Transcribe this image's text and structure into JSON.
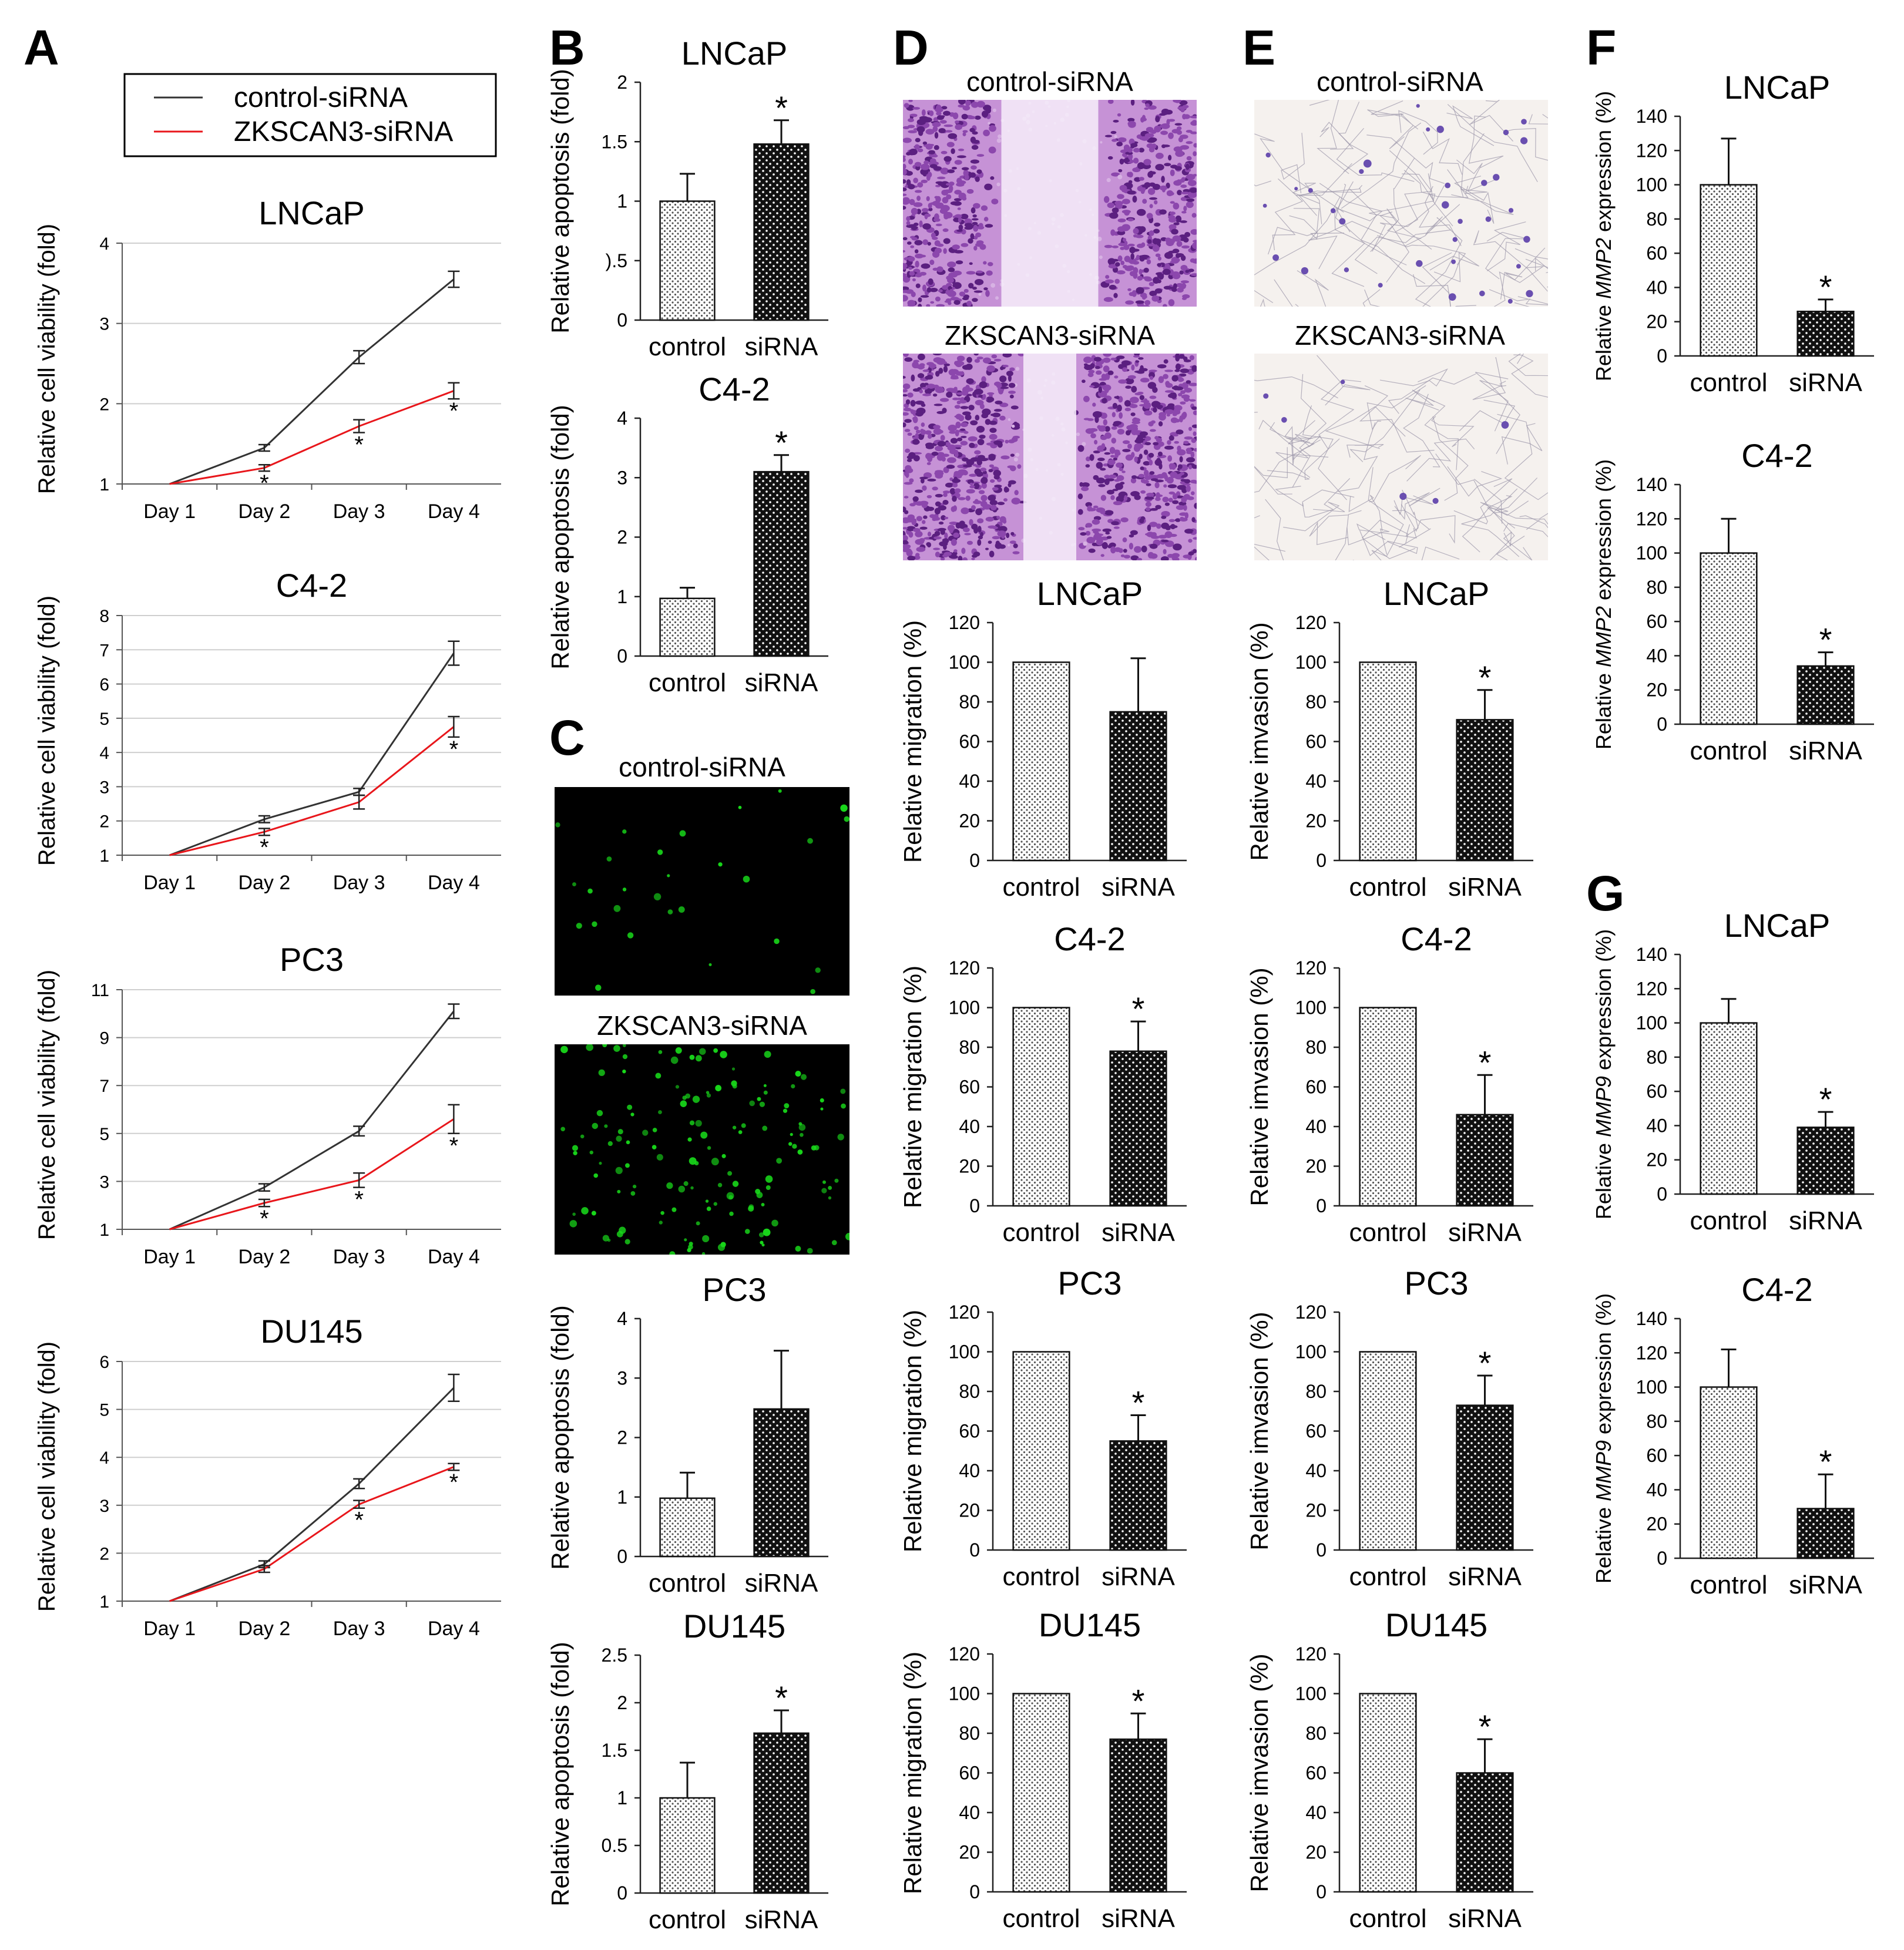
{
  "panel_letters": {
    "A": "A",
    "B": "B",
    "C": "C",
    "D": "D",
    "E": "E",
    "F": "F",
    "G": "G"
  },
  "legend": {
    "control": "control-siRNA",
    "zk": "ZKSCAN3-siRNA"
  },
  "colors": {
    "control_line": "#333333",
    "zk_line": "#e8161b",
    "grid": "#cfcfcf",
    "micro_cyan": "#7a3fa0",
    "fluor": "#18d81a",
    "invasion": "#6a4fb0"
  },
  "images": [
    {
      "title": "control-siRNA"
    },
    {
      "title": "ZKSCAN3-siRNA"
    },
    {
      "title": "control-siRNA"
    },
    {
      "title": "ZKSCAN3-siRNA"
    },
    {
      "title": "control-siRNA"
    },
    {
      "title": "ZKSCAN3-siRNA"
    }
  ],
  "chart_data": [
    {
      "id": "A1",
      "type": "line",
      "title": "LNCaP",
      "ylabel": "Relative cell viability (fold)",
      "categories": [
        "Day 1",
        "Day 2",
        "Day 3",
        "Day 4"
      ],
      "ylim": [
        1,
        4
      ],
      "yticks": [
        "1",
        "2",
        "3",
        "4"
      ],
      "grid": true,
      "series": [
        {
          "name": "control-siRNA",
          "values": [
            1,
            1.45,
            2.58,
            3.55
          ],
          "err": [
            0,
            0.04,
            0.08,
            0.1
          ]
        },
        {
          "name": "ZKSCAN3-siRNA",
          "values": [
            1,
            1.2,
            1.72,
            2.16
          ],
          "err": [
            0,
            0.04,
            0.08,
            0.1
          ]
        }
      ],
      "stars": [
        "",
        "*",
        "*",
        "*"
      ]
    },
    {
      "id": "A2",
      "type": "line",
      "title": "C4-2",
      "ylabel": "Relative cell viability (fold)",
      "categories": [
        "Day 1",
        "Day 2",
        "Day 3",
        "Day 4"
      ],
      "ylim": [
        1,
        8
      ],
      "yticks": [
        "1",
        "2",
        "3",
        "4",
        "5",
        "6",
        "7",
        "8"
      ],
      "grid": true,
      "series": [
        {
          "name": "control-siRNA",
          "values": [
            1,
            2.05,
            2.85,
            6.9
          ],
          "err": [
            0,
            0.1,
            0.1,
            0.35
          ]
        },
        {
          "name": "ZKSCAN3-siRNA",
          "values": [
            1,
            1.68,
            2.55,
            4.75
          ],
          "err": [
            0,
            0.1,
            0.2,
            0.3
          ]
        }
      ],
      "stars": [
        "",
        "*",
        "",
        "*"
      ]
    },
    {
      "id": "A3",
      "type": "line",
      "title": "PC3",
      "ylabel": "Relative cell viability (fold)",
      "categories": [
        "Day 1",
        "Day 2",
        "Day 3",
        "Day 4"
      ],
      "ylim": [
        1,
        11
      ],
      "yticks": [
        "1",
        "3",
        "5",
        "7",
        "9",
        "11"
      ],
      "grid": true,
      "series": [
        {
          "name": "control-siRNA",
          "values": [
            1,
            2.75,
            5.1,
            10.1
          ],
          "err": [
            0,
            0.15,
            0.2,
            0.3
          ]
        },
        {
          "name": "ZKSCAN3-siRNA",
          "values": [
            1,
            2.1,
            3.05,
            5.6
          ],
          "err": [
            0,
            0.15,
            0.3,
            0.6
          ]
        }
      ],
      "stars": [
        "",
        "*",
        "*",
        "*"
      ]
    },
    {
      "id": "A4",
      "type": "line",
      "title": "DU145",
      "ylabel": "Relative cell viability (fold)",
      "categories": [
        "Day 1",
        "Day 2",
        "Day 3",
        "Day 4"
      ],
      "ylim": [
        1,
        6
      ],
      "yticks": [
        "1",
        "2",
        "3",
        "4",
        "5",
        "6"
      ],
      "grid": true,
      "series": [
        {
          "name": "control-siRNA",
          "values": [
            1,
            1.77,
            3.45,
            5.45
          ],
          "err": [
            0,
            0.07,
            0.1,
            0.28
          ]
        },
        {
          "name": "ZKSCAN3-siRNA",
          "values": [
            1,
            1.67,
            3.02,
            3.8
          ],
          "err": [
            0,
            0.07,
            0.08,
            0.07
          ]
        }
      ],
      "stars": [
        "",
        "",
        "*",
        "*"
      ]
    },
    {
      "id": "B1",
      "type": "bar",
      "title": "LNCaP",
      "ylabel": "Relative apoptosis (fold)",
      "categories": [
        "control",
        "siRNA"
      ],
      "values": [
        1,
        1.48
      ],
      "err": [
        0.23,
        0.2
      ],
      "ylim": [
        0,
        2
      ],
      "yticks": [
        "0",
        ").5",
        "1",
        "1.5",
        "2"
      ],
      "stars": [
        "",
        "*"
      ]
    },
    {
      "id": "B2",
      "type": "bar",
      "title": "C4-2",
      "ylabel": "Relative apoptosis (fold)",
      "categories": [
        "control",
        "siRNA"
      ],
      "values": [
        0.97,
        3.1
      ],
      "err": [
        0.18,
        0.28
      ],
      "ylim": [
        0,
        4
      ],
      "yticks": [
        "0",
        "1",
        "2",
        "3",
        "4"
      ],
      "stars": [
        "",
        "*"
      ]
    },
    {
      "id": "C1",
      "type": "bar",
      "title": "PC3",
      "ylabel": "Relative apoptosis (fold)",
      "categories": [
        "control",
        "siRNA"
      ],
      "values": [
        0.98,
        2.48
      ],
      "err": [
        0.43,
        0.98
      ],
      "ylim": [
        0,
        4
      ],
      "yticks": [
        "0",
        "1",
        "2",
        "3",
        "4"
      ],
      "stars": [
        "",
        ""
      ]
    },
    {
      "id": "C2",
      "type": "bar",
      "title": "DU145",
      "ylabel": "Relative apoptosis (fold)",
      "categories": [
        "control",
        "siRNA"
      ],
      "values": [
        1,
        1.68
      ],
      "err": [
        0.37,
        0.24
      ],
      "ylim": [
        0,
        2.5
      ],
      "yticks": [
        "0",
        "0.5",
        "1",
        "1.5",
        "2",
        "2.5"
      ],
      "stars": [
        "",
        "*"
      ]
    },
    {
      "id": "D1",
      "type": "bar",
      "title": "LNCaP",
      "ylabel": "Relative migration (%)",
      "categories": [
        "control",
        "siRNA"
      ],
      "values": [
        100,
        75
      ],
      "err": [
        0,
        27
      ],
      "ylim": [
        0,
        120
      ],
      "yticks": [
        "0",
        "20",
        "40",
        "60",
        "80",
        "100",
        "120"
      ],
      "stars": [
        "",
        ""
      ]
    },
    {
      "id": "D2",
      "type": "bar",
      "title": "C4-2",
      "ylabel": "Relative migration (%)",
      "categories": [
        "control",
        "siRNA"
      ],
      "values": [
        100,
        78
      ],
      "err": [
        0,
        15
      ],
      "ylim": [
        0,
        120
      ],
      "yticks": [
        "0",
        "20",
        "40",
        "60",
        "80",
        "100",
        "120"
      ],
      "stars": [
        "",
        "*"
      ]
    },
    {
      "id": "D3",
      "type": "bar",
      "title": "PC3",
      "ylabel": "Relative migration (%)",
      "categories": [
        "control",
        "siRNA"
      ],
      "values": [
        100,
        55
      ],
      "err": [
        0,
        13
      ],
      "ylim": [
        0,
        120
      ],
      "yticks": [
        "0",
        "20",
        "40",
        "60",
        "80",
        "100",
        "120"
      ],
      "stars": [
        "",
        "*"
      ]
    },
    {
      "id": "D4",
      "type": "bar",
      "title": "DU145",
      "ylabel": "Relative migration (%)",
      "categories": [
        "control",
        "siRNA"
      ],
      "values": [
        100,
        77
      ],
      "err": [
        0,
        13
      ],
      "ylim": [
        0,
        120
      ],
      "yticks": [
        "0",
        "20",
        "40",
        "60",
        "80",
        "100",
        "120"
      ],
      "stars": [
        "",
        "*"
      ]
    },
    {
      "id": "E1",
      "type": "bar",
      "title": "LNCaP",
      "ylabel": "Relative imvasion (%)",
      "categories": [
        "control",
        "siRNA"
      ],
      "values": [
        100,
        71
      ],
      "err": [
        0,
        15
      ],
      "ylim": [
        0,
        120
      ],
      "yticks": [
        "0",
        "20",
        "40",
        "60",
        "80",
        "100",
        "120"
      ],
      "stars": [
        "",
        "*"
      ]
    },
    {
      "id": "E2",
      "type": "bar",
      "title": "C4-2",
      "ylabel": "Relative imvasion (%)",
      "categories": [
        "control",
        "siRNA"
      ],
      "values": [
        100,
        46
      ],
      "err": [
        0,
        20
      ],
      "ylim": [
        0,
        120
      ],
      "yticks": [
        "0",
        "20",
        "40",
        "60",
        "80",
        "100",
        "120"
      ],
      "stars": [
        "",
        "*"
      ]
    },
    {
      "id": "E3",
      "type": "bar",
      "title": "PC3",
      "ylabel": "Relative imvasion (%)",
      "categories": [
        "control",
        "siRNA"
      ],
      "values": [
        100,
        73
      ],
      "err": [
        0,
        15
      ],
      "ylim": [
        0,
        120
      ],
      "yticks": [
        "0",
        "20",
        "40",
        "60",
        "80",
        "100",
        "120"
      ],
      "stars": [
        "",
        "*"
      ]
    },
    {
      "id": "E4",
      "type": "bar",
      "title": "DU145",
      "ylabel": "Relative imvasion (%)",
      "categories": [
        "control",
        "siRNA"
      ],
      "values": [
        100,
        60
      ],
      "err": [
        0,
        17
      ],
      "ylim": [
        0,
        120
      ],
      "yticks": [
        "0",
        "20",
        "40",
        "60",
        "80",
        "100",
        "120"
      ],
      "stars": [
        "",
        "*"
      ]
    },
    {
      "id": "F1",
      "type": "bar",
      "title": "LNCaP",
      "ylabel": "Relative MMP2 expression (%)",
      "categories": [
        "control",
        "siRNA"
      ],
      "values": [
        100,
        26
      ],
      "err": [
        27,
        7
      ],
      "ylim": [
        0,
        140
      ],
      "yticks": [
        "0",
        "20",
        "40",
        "60",
        "80",
        "100",
        "120",
        "140"
      ],
      "stars": [
        "",
        "*"
      ]
    },
    {
      "id": "F2",
      "type": "bar",
      "title": "C4-2",
      "ylabel": "Relative MMP2 expression (%)",
      "categories": [
        "control",
        "siRNA"
      ],
      "values": [
        100,
        34
      ],
      "err": [
        20,
        8
      ],
      "ylim": [
        0,
        140
      ],
      "yticks": [
        "0",
        "20",
        "40",
        "60",
        "80",
        "100",
        "120",
        "140"
      ],
      "stars": [
        "",
        "*"
      ]
    },
    {
      "id": "G1",
      "type": "bar",
      "title": "LNCaP",
      "ylabel": "Relative MMP9 expression (%)",
      "categories": [
        "control",
        "siRNA"
      ],
      "values": [
        100,
        39
      ],
      "err": [
        14,
        9
      ],
      "ylim": [
        0,
        140
      ],
      "yticks": [
        "0",
        "20",
        "40",
        "60",
        "80",
        "100",
        "120",
        "140"
      ],
      "stars": [
        "",
        "*"
      ]
    },
    {
      "id": "G2",
      "type": "bar",
      "title": "C4-2",
      "ylabel": "Relative MMP9 expression (%)",
      "categories": [
        "control",
        "siRNA"
      ],
      "values": [
        100,
        29
      ],
      "err": [
        22,
        20
      ],
      "ylim": [
        0,
        140
      ],
      "yticks": [
        "0",
        "20",
        "40",
        "60",
        "80",
        "100",
        "120",
        "140"
      ],
      "stars": [
        "",
        "*"
      ]
    }
  ]
}
